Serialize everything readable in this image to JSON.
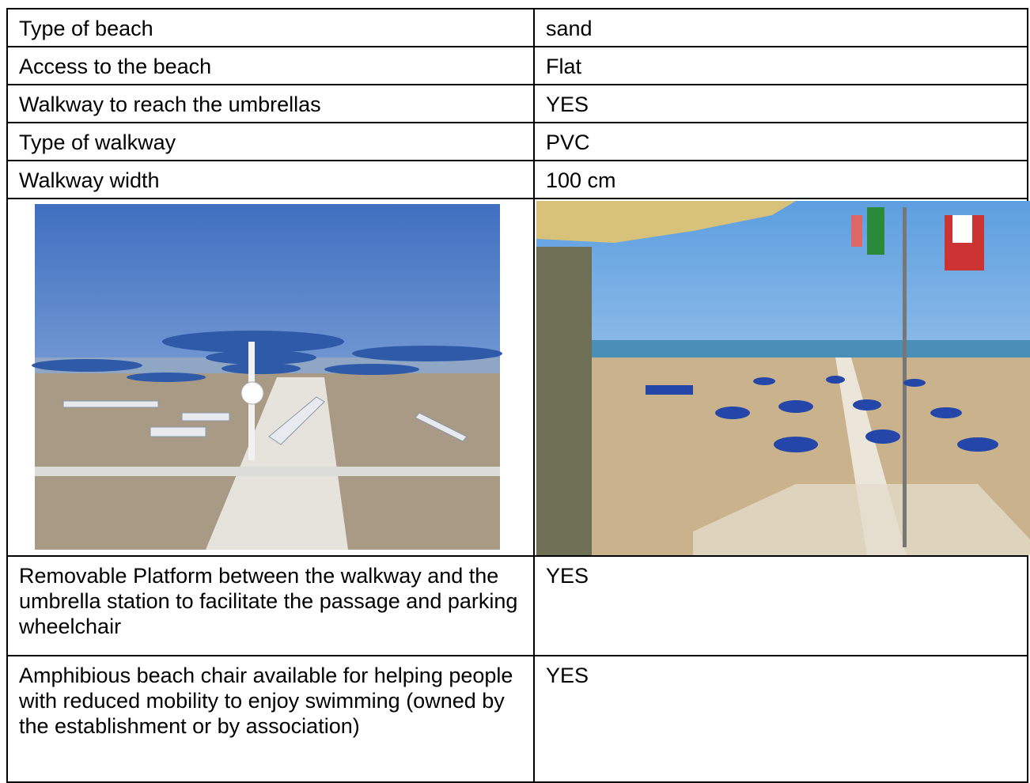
{
  "table": {
    "rows": [
      [
        "Type of beach",
        "sand"
      ],
      [
        "Access to the beach",
        "Flat"
      ],
      [
        "Walkway to reach the umbrellas",
        "YES"
      ],
      [
        "Type of walkway",
        "PVC"
      ],
      [
        "Walkway width",
        "100 cm"
      ],
      [
        "Removable Platform between the walkway and the umbrella station to facilitate the passage and parking wheelchair",
        "YES"
      ],
      [
        "Amphibious beach chair available for helping people with reduced mobility to enjoy swimming (owned by the establishment or by association)",
        "YES"
      ]
    ]
  }
}
